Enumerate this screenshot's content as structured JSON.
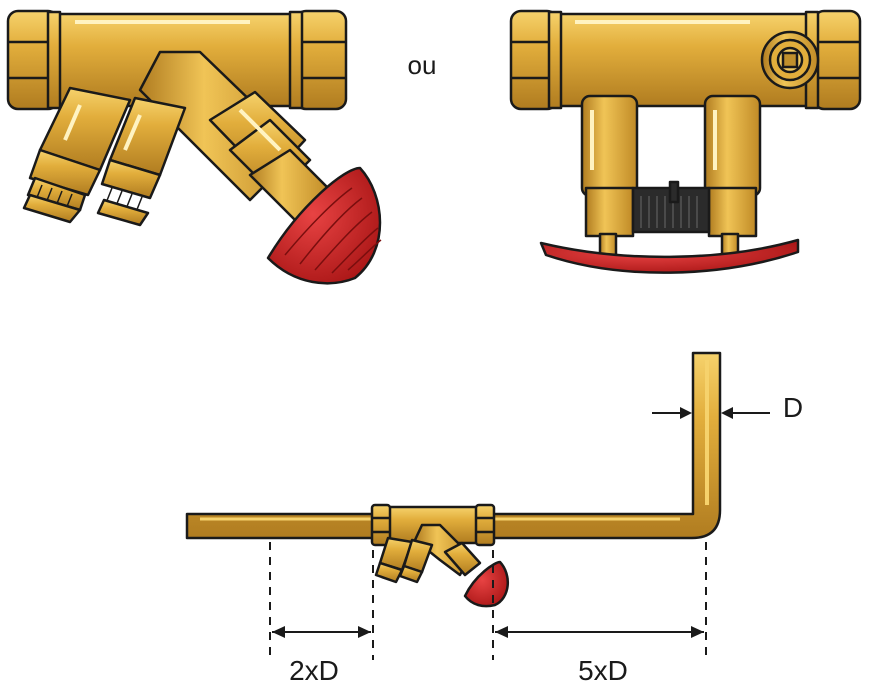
{
  "labels": {
    "or_text": "ou",
    "diameter": "D",
    "upstream": "2xD",
    "downstream": "5xD"
  },
  "colors": {
    "brass": "#e2ae3c",
    "brass_light": "#f3cc63",
    "brass_dark": "#a8761c",
    "handwheel": "#d32626",
    "handwheel_dark": "#8c1010",
    "outline": "#1a1a1a",
    "grip": "#2b2b2b"
  },
  "icons": {
    "valve_angled": "balancing-valve-icon",
    "valve_straight": "straight-valve-icon",
    "pipe": "pipe-installation-icon"
  }
}
